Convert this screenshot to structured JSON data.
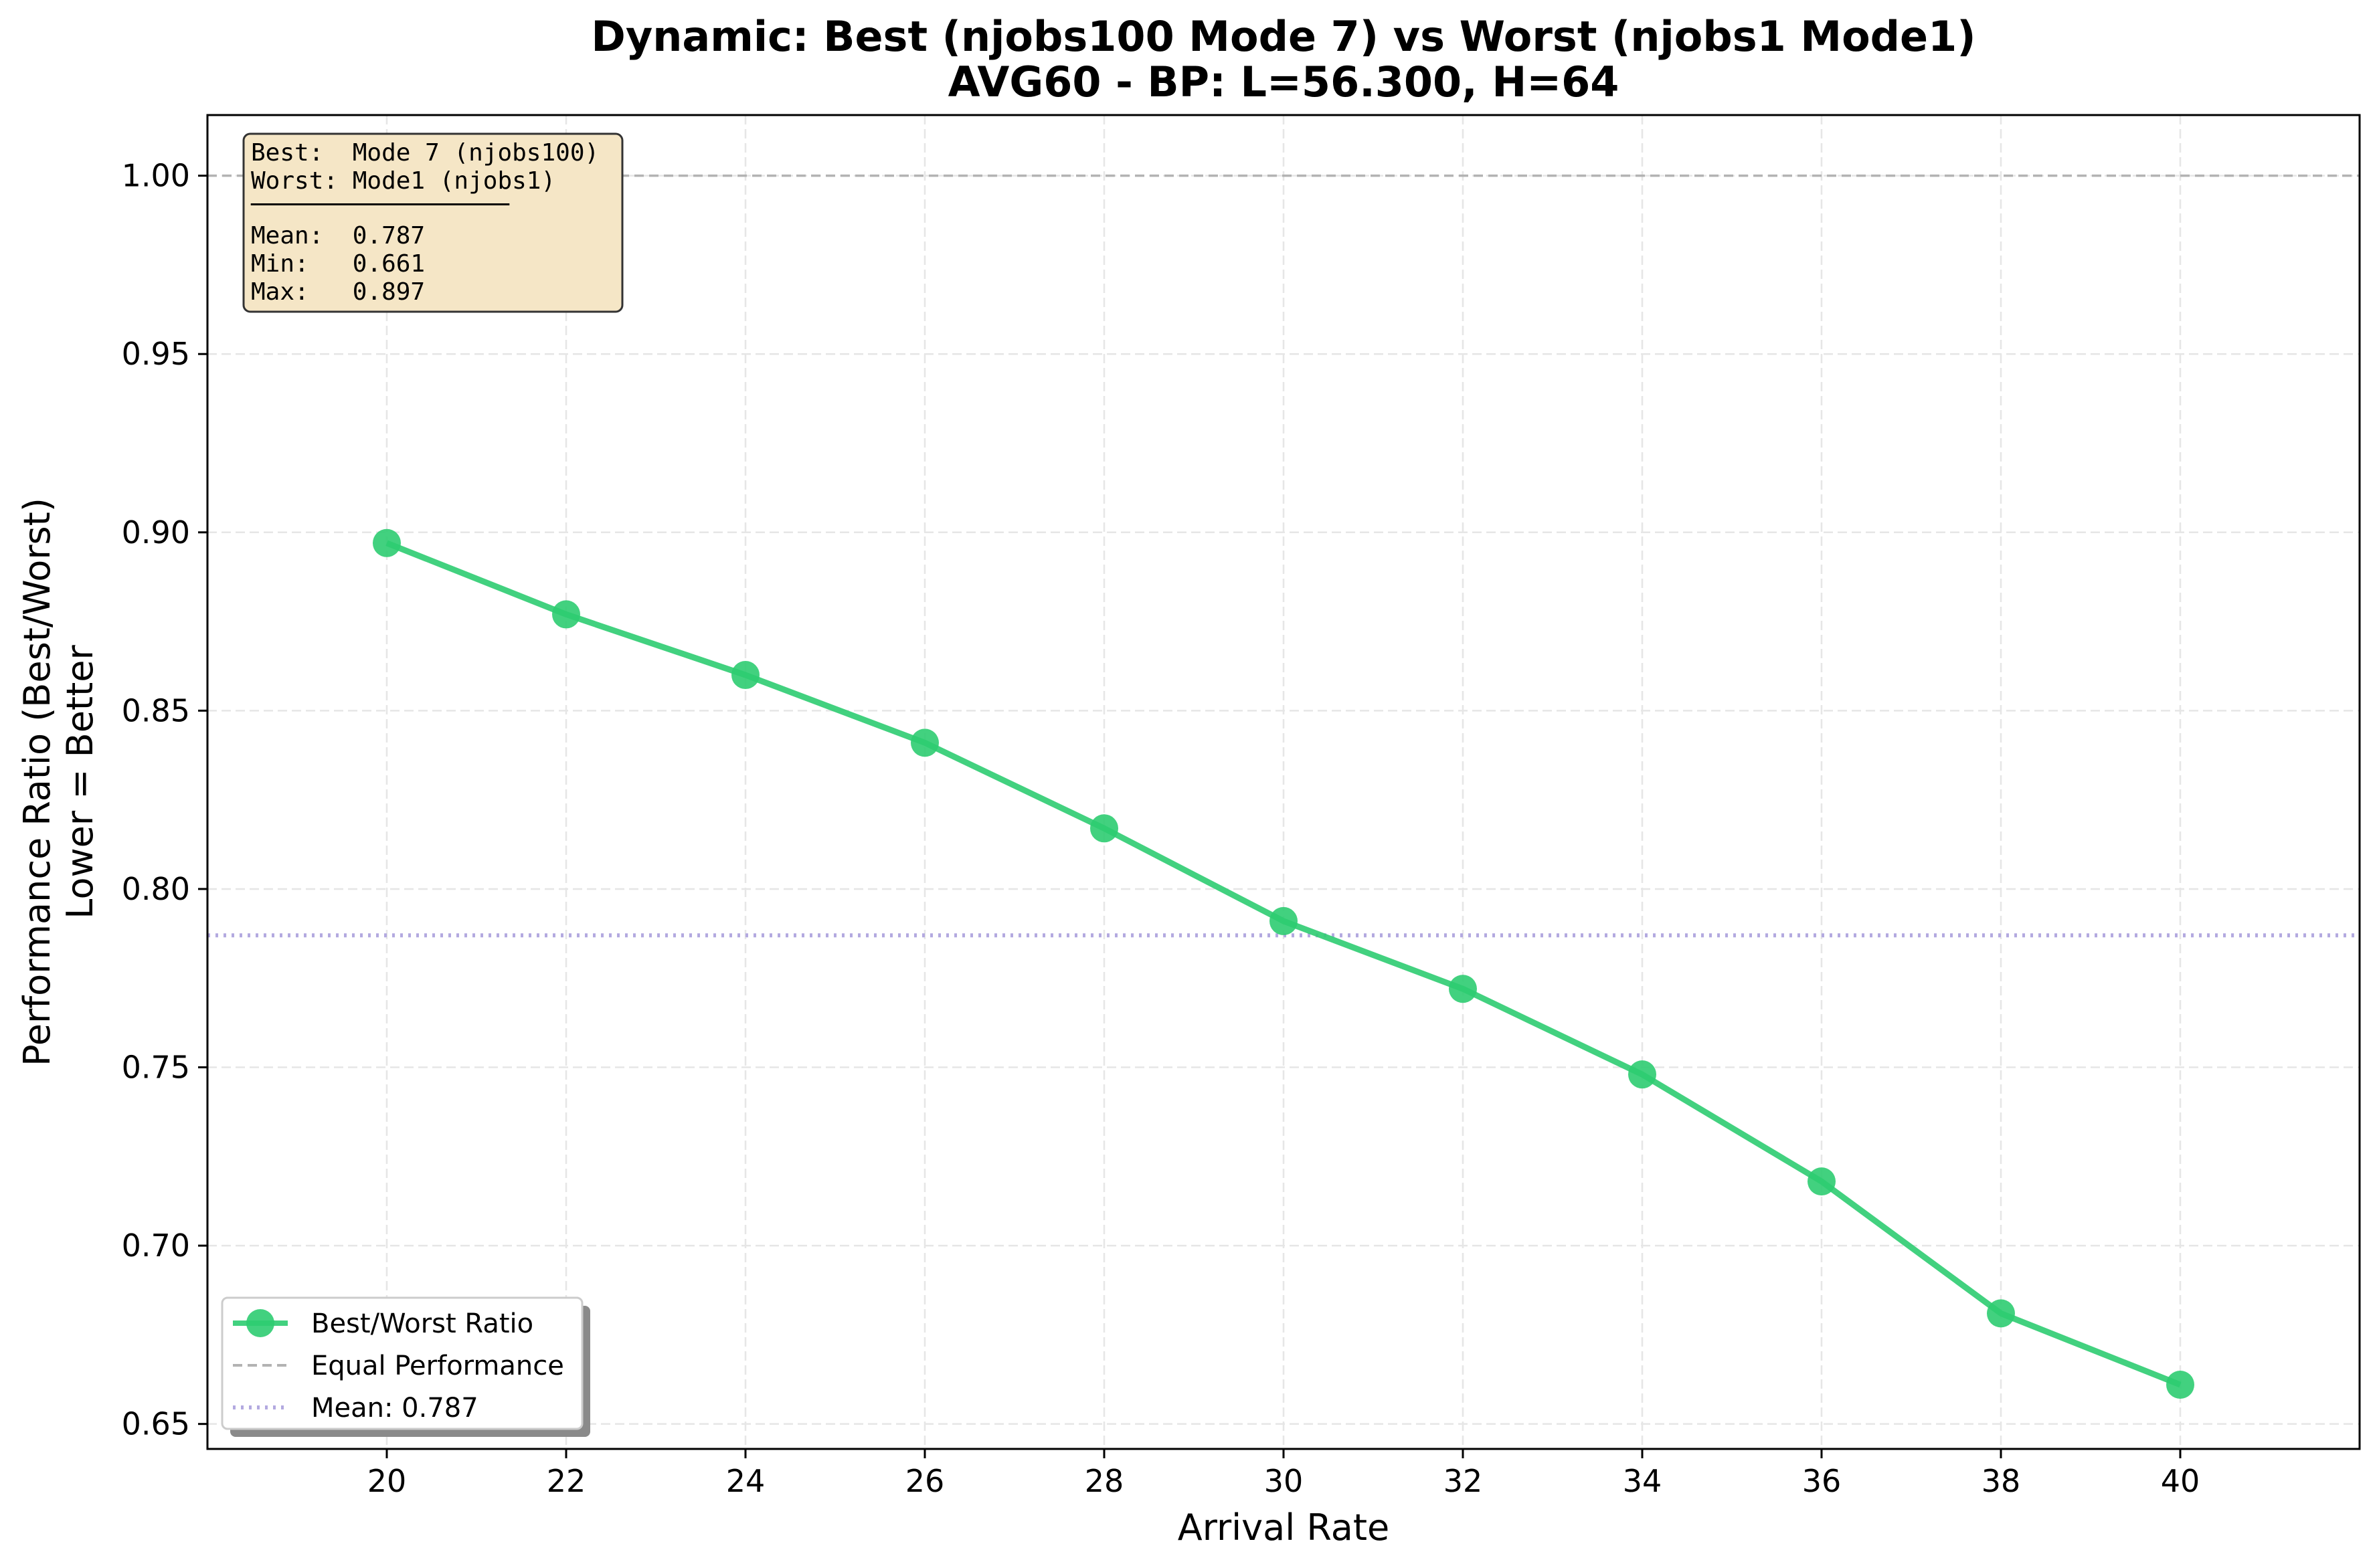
{
  "chart_data": {
    "type": "line",
    "title": "Dynamic: Best (njobs100 Mode 7) vs Worst (njobs1 Mode1)",
    "subtitle": "AVG60 - BP: L=56.300, H=64",
    "xlabel": "Arrival Rate",
    "ylabel": "Performance Ratio (Best/Worst)",
    "ylabel2": "Lower = Better",
    "xlim": [
      18,
      42
    ],
    "ylim": [
      0.643,
      1.017
    ],
    "xticks": [
      20,
      22,
      24,
      26,
      28,
      30,
      32,
      34,
      36,
      38,
      40
    ],
    "yticks": [
      0.65,
      0.7,
      0.75,
      0.8,
      0.85,
      0.9,
      0.95,
      1.0
    ],
    "grid": true,
    "series": [
      {
        "name": "Best/Worst Ratio",
        "color": "#2ecc71",
        "x": [
          20,
          22,
          24,
          26,
          28,
          30,
          32,
          34,
          36,
          38,
          40
        ],
        "y": [
          0.897,
          0.877,
          0.86,
          0.841,
          0.817,
          0.791,
          0.772,
          0.748,
          0.718,
          0.681,
          0.661
        ]
      }
    ],
    "reference_lines": [
      {
        "name": "Equal Performance",
        "y": 1.0,
        "style": "dashed",
        "color": "#b3b3b3"
      },
      {
        "name": "Mean: 0.787",
        "y": 0.787,
        "style": "dotted",
        "color": "#b3a9e0"
      }
    ],
    "annotation_box": {
      "lines": [
        "Best:  Mode 7 (njobs100)",
        "Worst: Mode1 (njobs1)",
        "───────────────────────",
        "Mean:  0.787",
        "Min:   0.661",
        "Max:   0.897"
      ],
      "placement": "top-left",
      "background": "#f5deb3"
    },
    "legend": {
      "placement": "lower-left",
      "entries": [
        "Best/Worst Ratio",
        "Equal Performance",
        "Mean: 0.787"
      ]
    }
  }
}
